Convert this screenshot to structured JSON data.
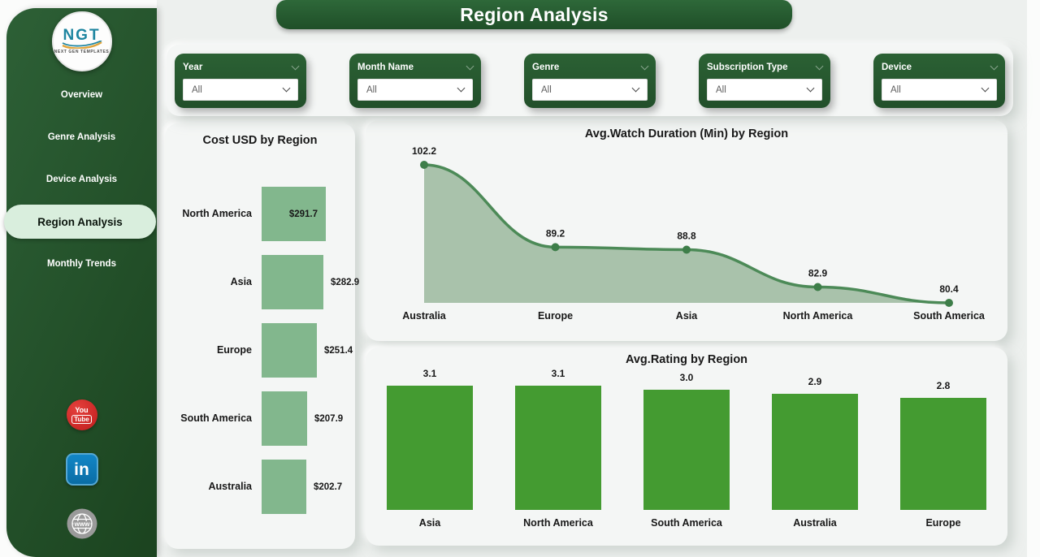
{
  "app": {
    "title": "Region Analysis"
  },
  "sidebar": {
    "logo": {
      "text": "NGT",
      "subtext": "NEXT GEN TEMPLATES"
    },
    "items": [
      {
        "label": "Overview",
        "active": false
      },
      {
        "label": "Genre Analysis",
        "active": false
      },
      {
        "label": "Device Analysis",
        "active": false
      },
      {
        "label": "Region Analysis",
        "active": true
      },
      {
        "label": "Monthly Trends",
        "active": false
      }
    ],
    "social": [
      {
        "icon": "youtube-icon",
        "line1": "You",
        "line2": "Tube"
      },
      {
        "icon": "linkedin-icon",
        "label": "in"
      },
      {
        "icon": "globe-icon",
        "label": "www"
      }
    ]
  },
  "filters": [
    {
      "label": "Year",
      "value": "All"
    },
    {
      "label": "Month Name",
      "value": "All"
    },
    {
      "label": "Genre",
      "value": "All"
    },
    {
      "label": "Subscription Type",
      "value": "All"
    },
    {
      "label": "Device",
      "value": "All"
    }
  ],
  "chart_data": [
    {
      "id": "cost_usd_by_region",
      "type": "bar",
      "orientation": "horizontal",
      "title": "Cost USD by Region",
      "categories": [
        "North America",
        "Asia",
        "Europe",
        "South America",
        "Australia"
      ],
      "values": [
        291.7,
        282.9,
        251.4,
        207.9,
        202.7
      ],
      "value_labels": [
        "$291.7",
        "$282.9",
        "$251.4",
        "$207.9",
        "$202.7"
      ],
      "bar_color": "#82b78d",
      "xlim": [
        0,
        300
      ]
    },
    {
      "id": "avg_watch_duration_by_region",
      "type": "area",
      "title": "Avg.Watch Duration (Min) by Region",
      "categories": [
        "Australia",
        "Europe",
        "Asia",
        "North America",
        "South America"
      ],
      "values": [
        102.2,
        89.2,
        88.8,
        82.9,
        80.4
      ],
      "value_labels": [
        "102.2",
        "89.2",
        "88.8",
        "82.9",
        "80.4"
      ],
      "line_color": "#4c8a57",
      "fill_color": "#a9c2ab",
      "marker_color": "#3e7e49"
    },
    {
      "id": "avg_rating_by_region",
      "type": "bar",
      "orientation": "vertical",
      "title": "Avg.Rating by Region",
      "categories": [
        "Asia",
        "North America",
        "South America",
        "Australia",
        "Europe"
      ],
      "values": [
        3.1,
        3.1,
        3.0,
        2.9,
        2.8
      ],
      "value_labels": [
        "3.1",
        "3.1",
        "3.0",
        "2.9",
        "2.8"
      ],
      "bar_color": "#449b31",
      "ylim": [
        0,
        3.5
      ]
    }
  ],
  "colors": {
    "sidebar_green_dark": "#1b431f",
    "sidebar_green": "#2d6036",
    "accent_green": "#275c30",
    "active_pill_green": "#d9eedd",
    "card_bg": "#f4f6f5",
    "page_bg": "#edf0ee",
    "youtube_red": "#c01d1d",
    "linkedin_blue": "#0a78b6",
    "globe_gray": "#9a9a9a"
  }
}
